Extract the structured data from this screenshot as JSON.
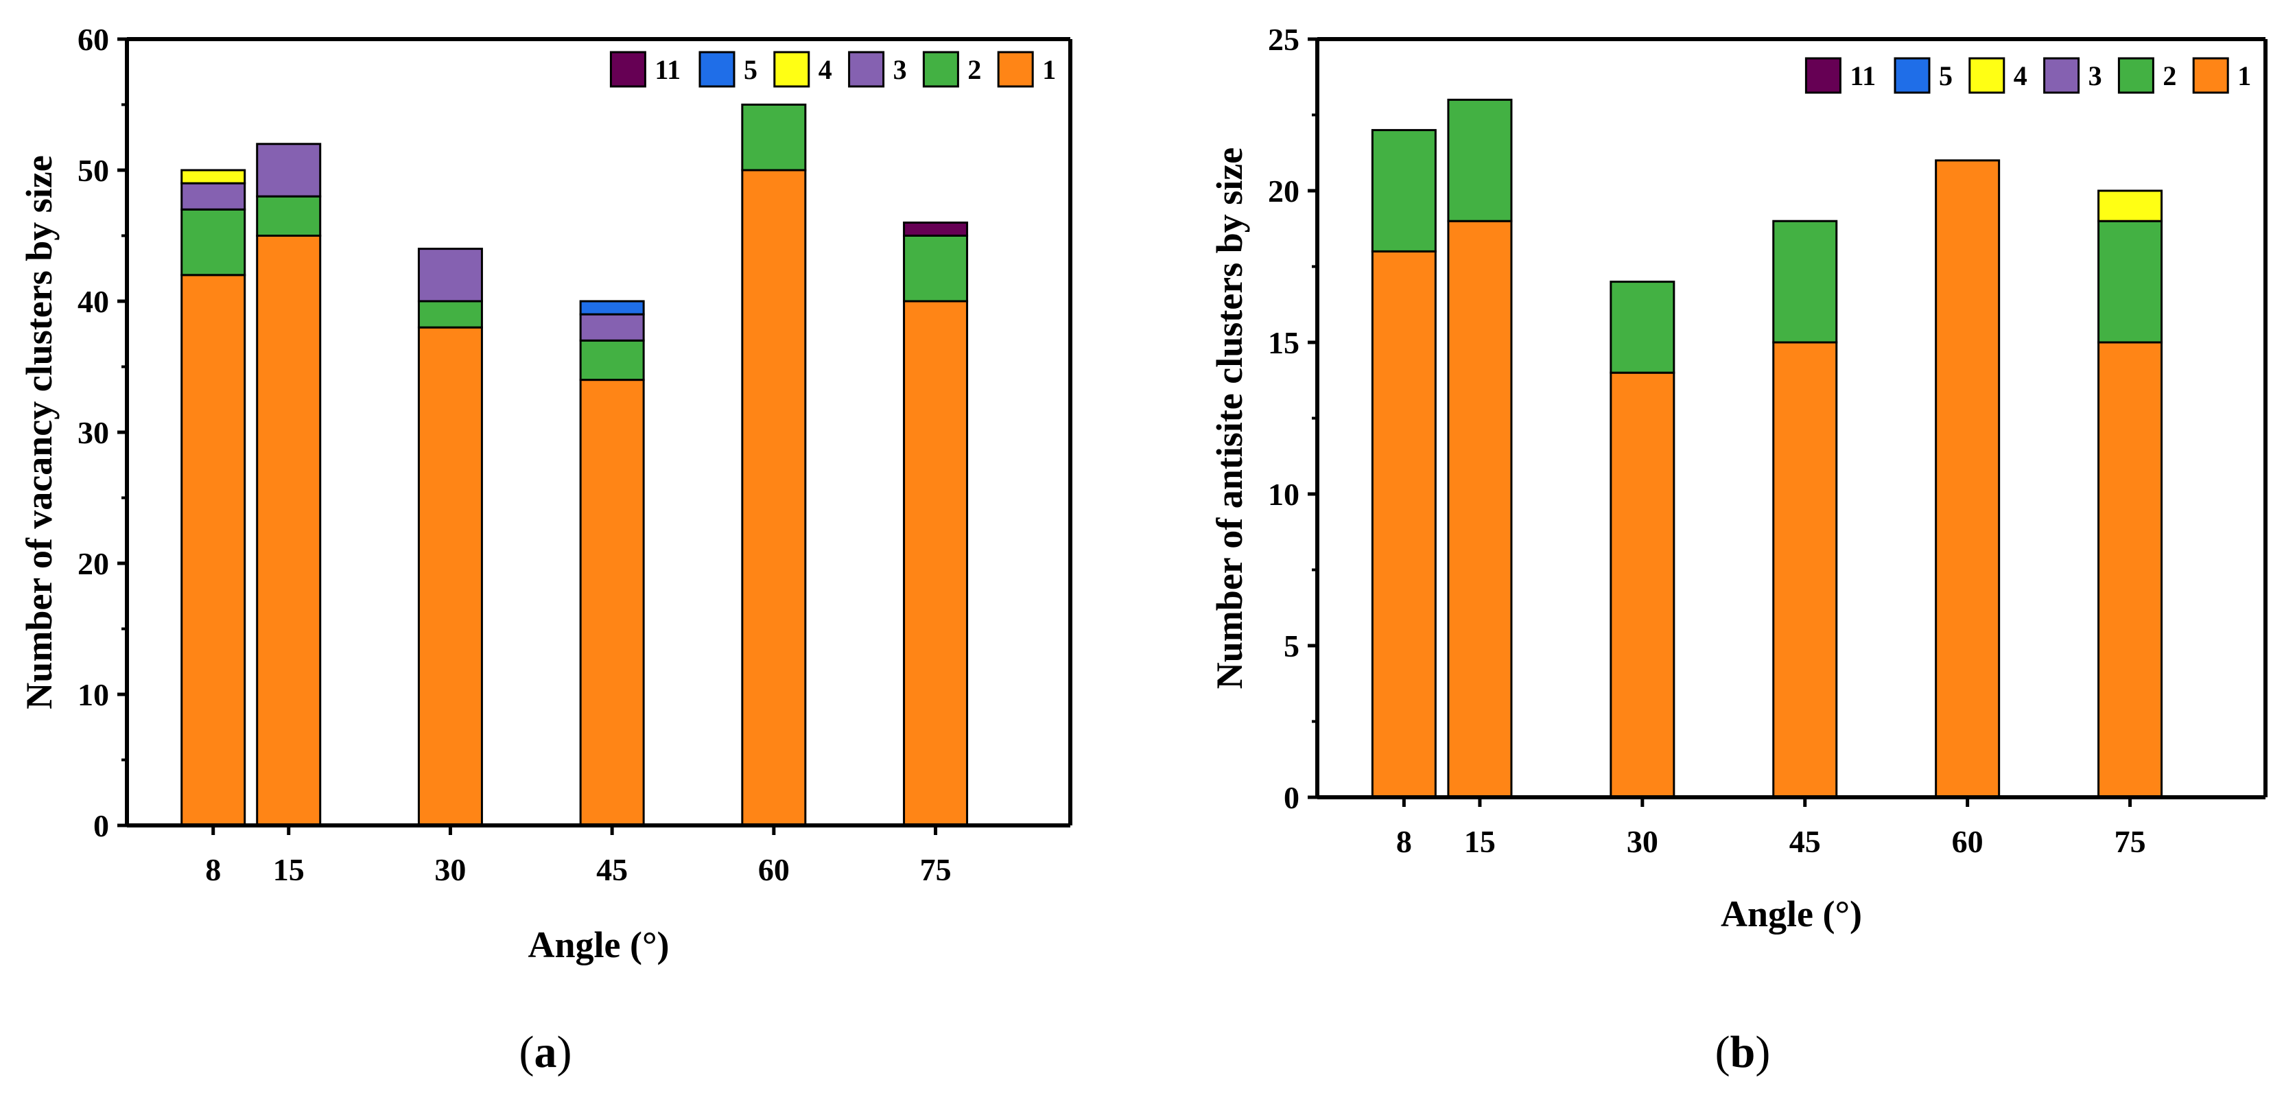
{
  "chart_data": [
    {
      "type": "bar",
      "stacked": true,
      "panel": "a",
      "caption_letter": "a",
      "title": "",
      "xlabel": "Angle (°)",
      "ylabel": "Number of vacancy clusters by size",
      "x": [
        8,
        15,
        30,
        45,
        60,
        75
      ],
      "x_tick_labels": [
        "8",
        "15",
        "30",
        "45",
        "60",
        "75"
      ],
      "ylim": [
        0,
        60
      ],
      "y_ticks": [
        0,
        10,
        20,
        30,
        40,
        50,
        60
      ],
      "y_tick_labels": [
        "0",
        "10",
        "20",
        "30",
        "40",
        "50",
        "60"
      ],
      "legend_position": "top-right",
      "legend_order": [
        "11",
        "5",
        "4",
        "3",
        "2",
        "1"
      ],
      "series": [
        {
          "name": "1",
          "color": "#ff8516",
          "values": [
            42,
            45,
            38,
            34,
            50,
            40
          ]
        },
        {
          "name": "2",
          "color": "#43b143",
          "values": [
            5,
            3,
            2,
            3,
            5,
            5
          ]
        },
        {
          "name": "3",
          "color": "#8561b1",
          "values": [
            2,
            4,
            4,
            2,
            0,
            0
          ]
        },
        {
          "name": "4",
          "color": "#ffff14",
          "values": [
            1,
            0,
            0,
            0,
            0,
            0
          ]
        },
        {
          "name": "5",
          "color": "#1f6ee8",
          "values": [
            0,
            0,
            0,
            1,
            0,
            0
          ]
        },
        {
          "name": "11",
          "color": "#660054",
          "values": [
            0,
            0,
            0,
            0,
            0,
            1
          ]
        }
      ]
    },
    {
      "type": "bar",
      "stacked": true,
      "panel": "b",
      "caption_letter": "b",
      "title": "",
      "xlabel": "Angle (°)",
      "ylabel": "Number of antisite clusters by size",
      "x": [
        8,
        15,
        30,
        45,
        60,
        75
      ],
      "x_tick_labels": [
        "8",
        "15",
        "30",
        "45",
        "60",
        "75"
      ],
      "ylim": [
        0,
        25
      ],
      "y_ticks": [
        0,
        5,
        10,
        15,
        20,
        25
      ],
      "y_tick_labels": [
        "0",
        "5",
        "10",
        "15",
        "20",
        "25"
      ],
      "legend_position": "top-right",
      "legend_order": [
        "11",
        "5",
        "4",
        "3",
        "2",
        "1"
      ],
      "series": [
        {
          "name": "1",
          "color": "#ff8516",
          "values": [
            18,
            19,
            14,
            15,
            21,
            15
          ]
        },
        {
          "name": "2",
          "color": "#43b143",
          "values": [
            4,
            4,
            3,
            4,
            0,
            4
          ]
        },
        {
          "name": "3",
          "color": "#8561b1",
          "values": [
            0,
            0,
            0,
            0,
            0,
            0
          ]
        },
        {
          "name": "4",
          "color": "#ffff14",
          "values": [
            0,
            0,
            0,
            0,
            0,
            1
          ]
        },
        {
          "name": "5",
          "color": "#1f6ee8",
          "values": [
            0,
            0,
            0,
            0,
            0,
            0
          ]
        },
        {
          "name": "11",
          "color": "#660054",
          "values": [
            0,
            0,
            0,
            0,
            0,
            0
          ]
        }
      ]
    }
  ]
}
